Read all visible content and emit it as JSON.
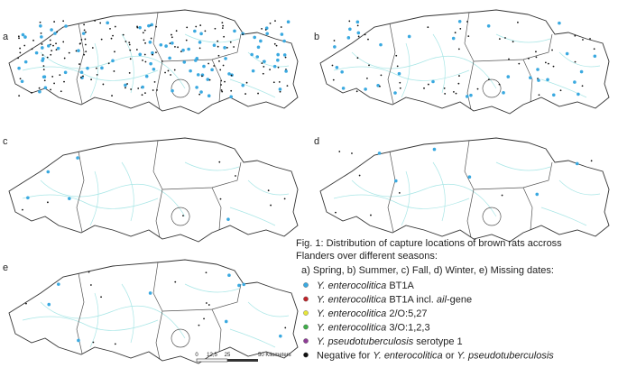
{
  "panels": [
    {
      "label": "a"
    },
    {
      "label": "b"
    },
    {
      "label": "c"
    },
    {
      "label": "d"
    },
    {
      "label": "e"
    }
  ],
  "caption": {
    "lines": [
      "Fig. 1: Distribution of capture locations of brown rats accross",
      "Flanders over different seasons:"
    ],
    "seasons": "a) Spring, b) Summer, c) Fall, d) Winter, e) Missing dates:"
  },
  "legend": [
    {
      "color": "#3aa9e0",
      "parts": [
        "Y. enterocolitica",
        "BT1A"
      ]
    },
    {
      "color": "#c0242a",
      "parts": [
        "Y. enterocolitica",
        "BT1A incl.",
        "ail",
        "-gene"
      ]
    },
    {
      "color": "#e6e63a",
      "parts": [
        "Y. enterocolitica",
        "2/O:5,27"
      ]
    },
    {
      "color": "#3fae49",
      "parts": [
        "Y. enterocolitica",
        "3/O:1,2,3"
      ]
    },
    {
      "color": "#8e3c96",
      "parts": [
        "Y. pseudotuberculosis",
        "serotype 1"
      ]
    },
    {
      "color": "#111111",
      "parts": [
        "Negative for",
        "Y. enterocolitica",
        "or",
        "Y. pseudotuberculosis"
      ]
    }
  ],
  "scale_bar": {
    "labels": [
      "0",
      "12,5",
      "25",
      "50 Kilometers"
    ]
  }
}
